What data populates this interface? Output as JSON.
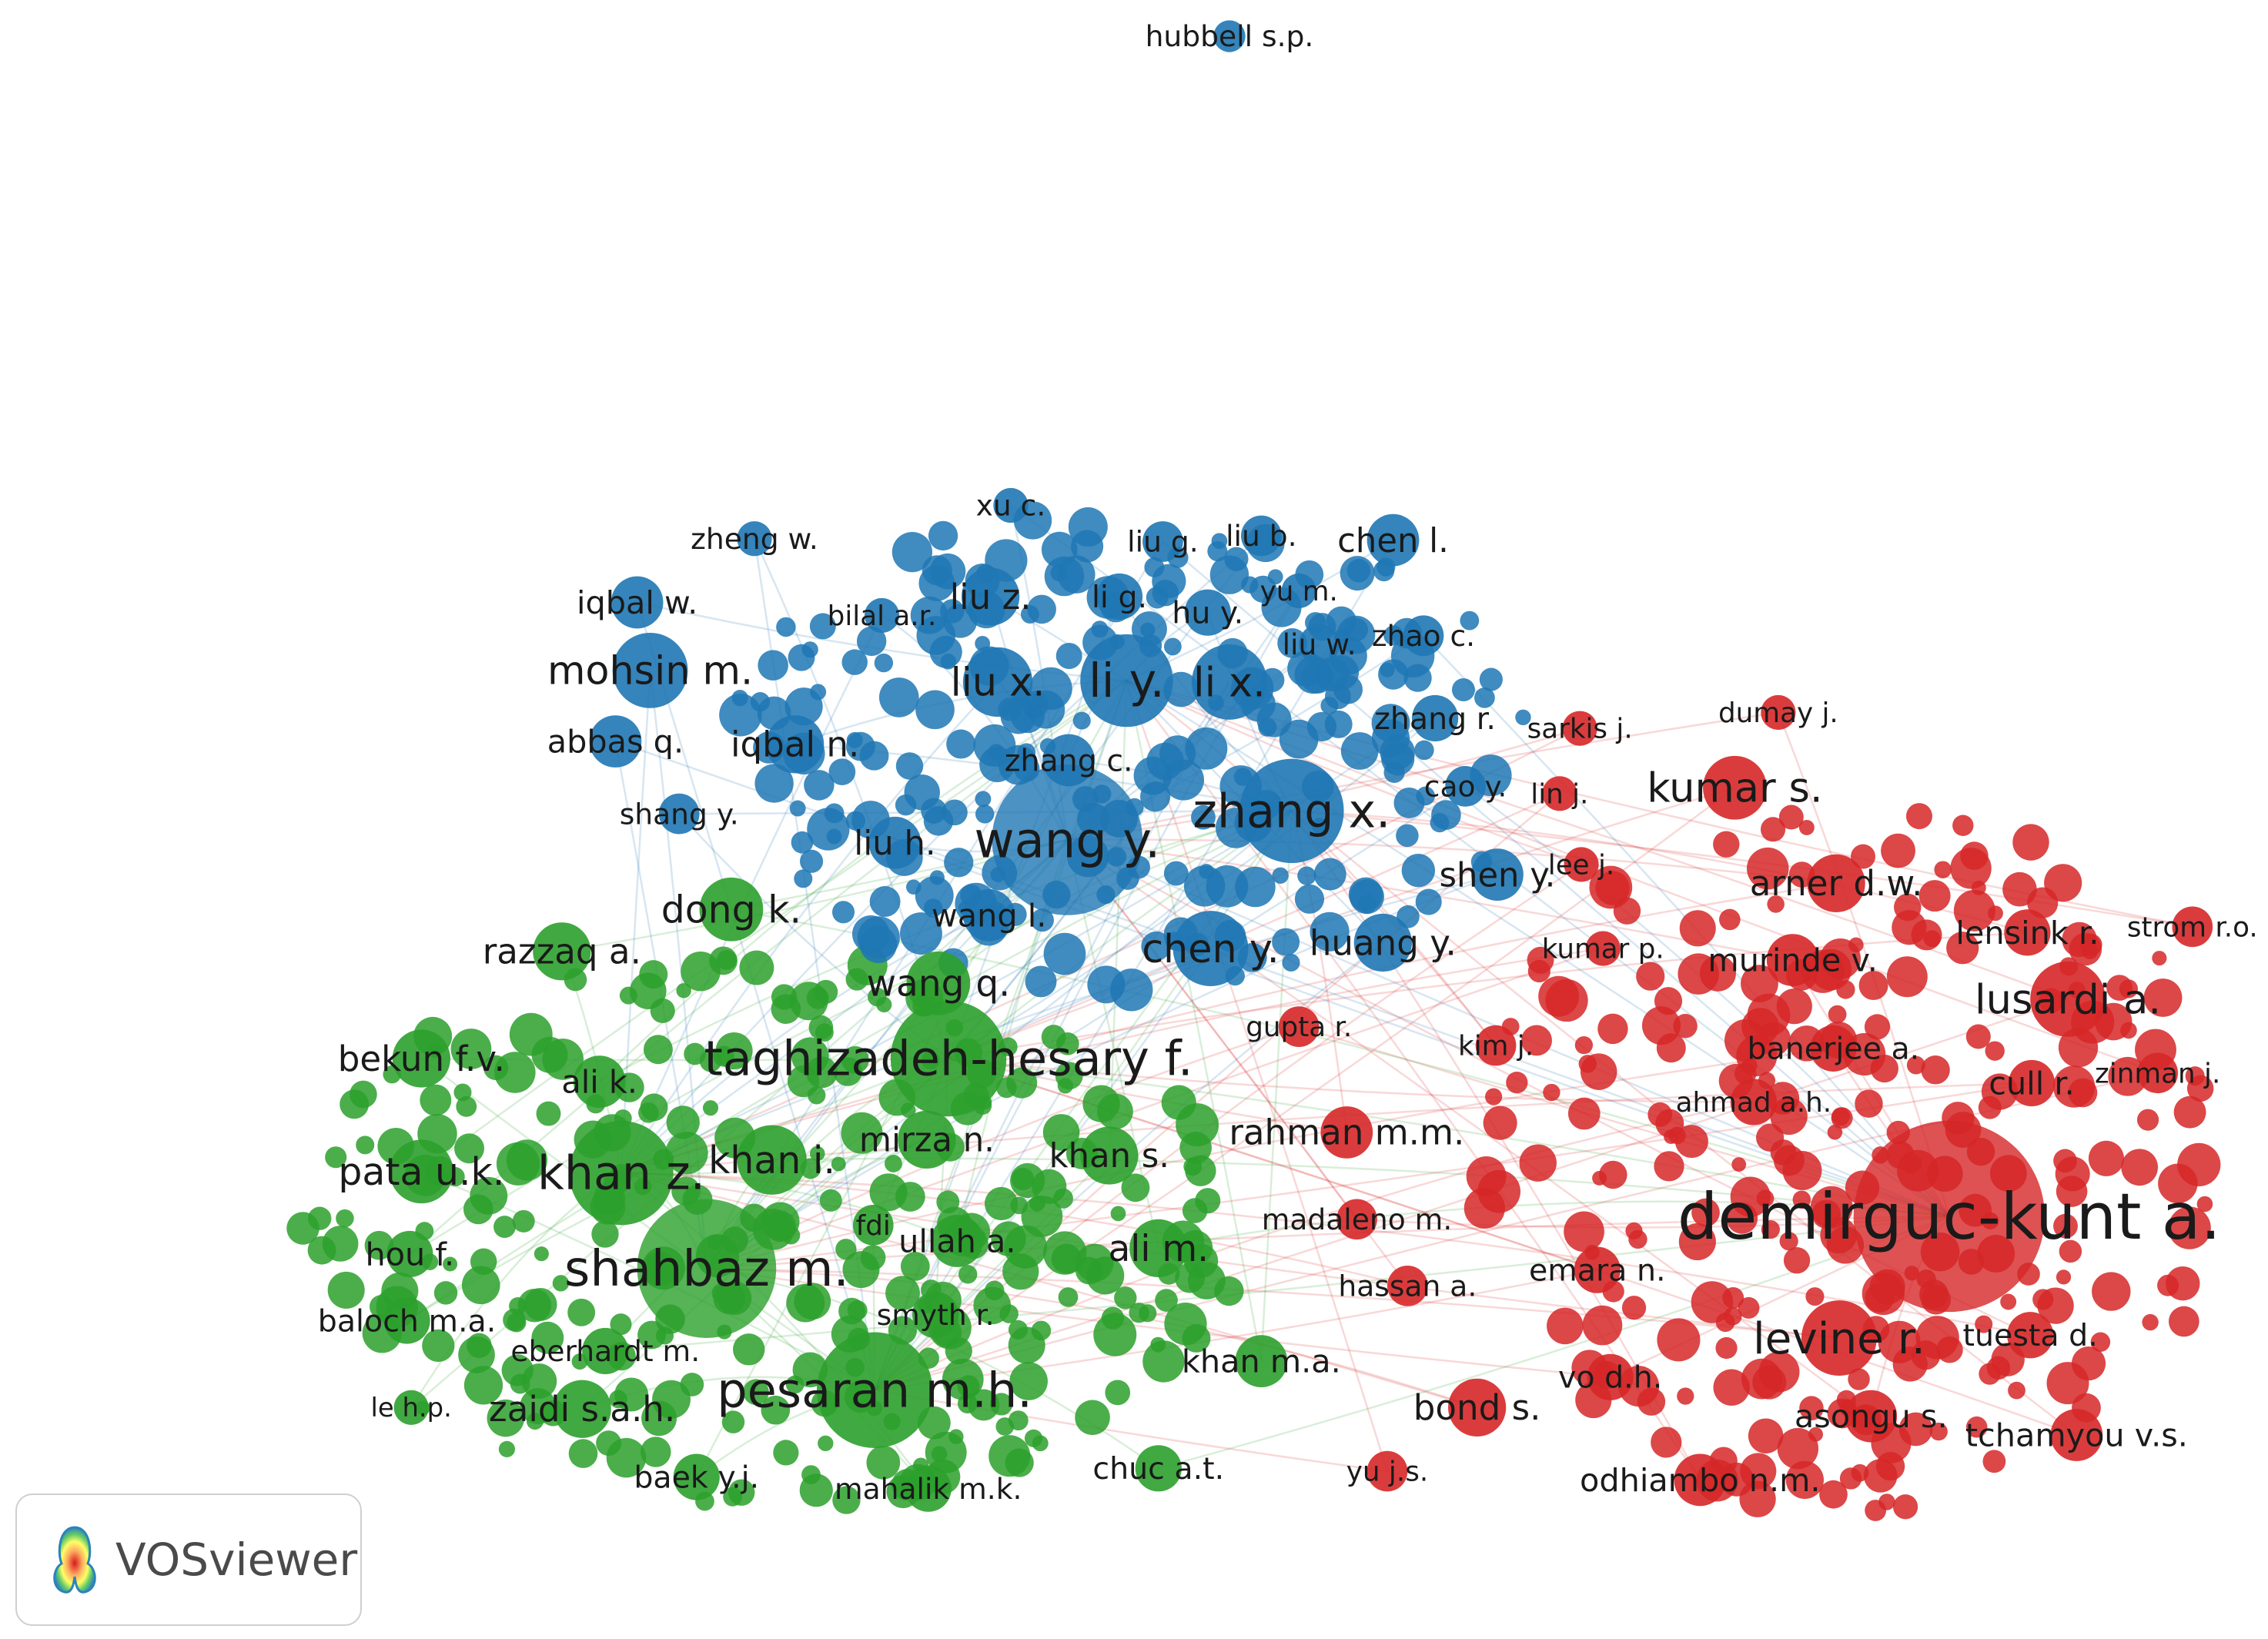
{
  "app": {
    "name": "VOSviewer"
  },
  "colors": {
    "cluster_1": "#d62728",
    "cluster_2": "#2ca02c",
    "cluster_3": "#1f77b4"
  },
  "legend": {
    "logo_icon": "vosviewer-density-icon",
    "label": "VOSviewer"
  },
  "network": {
    "type": "co-citation author network",
    "clusters": [
      {
        "id": "red",
        "labels": [
          "demirguc-kunt a.",
          "levine r.",
          "lusardi a.",
          "kumar s.",
          "arner d.w.",
          "murinde v.",
          "lensink r.",
          "strom r.o.",
          "banerjee a.",
          "cull r.",
          "zinman j.",
          "ahmad a.h.",
          "tuesta d.",
          "asongu s.",
          "tchamyou v.s.",
          "odhiambo n.m.",
          "vo d.h.",
          "bond s.",
          "yu j.s.",
          "emara n.",
          "hassan a.",
          "madaleno m.",
          "rahman m.m.",
          "kim j.",
          "gupta r.",
          "kumar p.",
          "lee j.",
          "lin j.",
          "sarkis j.",
          "dumay j."
        ]
      },
      {
        "id": "green",
        "labels": [
          "shahbaz m.",
          "pesaran m.h.",
          "taghizadeh-hesary f.",
          "khan z.",
          "pata u.k.",
          "bekun f.v.",
          "razzaq a.",
          "dong k.",
          "wang q.",
          "ali k.",
          "khan i.",
          "mirza n.",
          "khan s.",
          "fdi",
          "ullah a.",
          "ali m.",
          "smyth r.",
          "khan m.a.",
          "chuc a.t.",
          "mahalik m.k.",
          "baek y.j.",
          "zaidi s.a.h.",
          "le h.p.",
          "eberhardt m.",
          "baloch m.a.",
          "hou f."
        ]
      },
      {
        "id": "blue",
        "labels": [
          "wang y.",
          "zhang x.",
          "li y.",
          "li x.",
          "liu x.",
          "liu z.",
          "li g.",
          "hu y.",
          "liu g.",
          "liu b.",
          "chen l.",
          "yu m.",
          "liu w.",
          "zhao c.",
          "zhang r.",
          "zhang c.",
          "cao y.",
          "shen y.",
          "huang y.",
          "chen y.",
          "wang l.",
          "liu h.",
          "shang y.",
          "iqbal n.",
          "abbas q.",
          "mohsin m.",
          "iqbal w.",
          "zheng w.",
          "bilal a.r.",
          "xu c.",
          "hubbell s.p."
        ]
      }
    ]
  }
}
